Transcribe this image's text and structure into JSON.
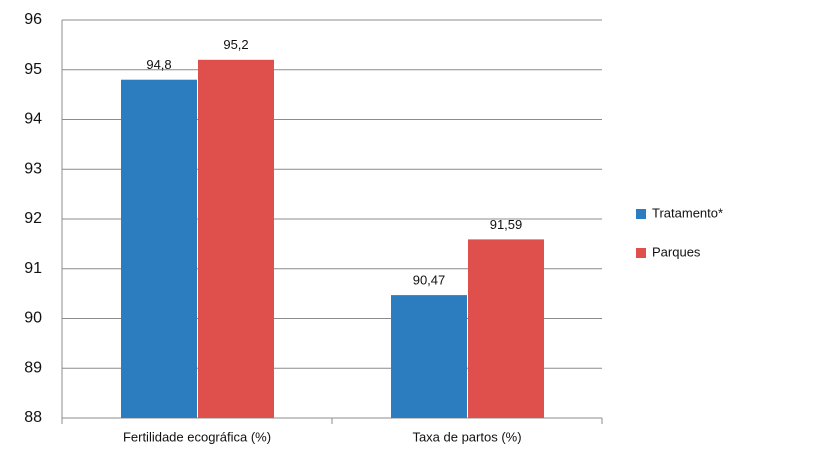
{
  "chart_data": {
    "type": "bar",
    "categories": [
      "Fertilidade ecográfica (%)",
      "Taxa de partos (%)"
    ],
    "series": [
      {
        "name": "Tratamento*",
        "color": "#2b7dc0",
        "values": [
          94.8,
          90.47
        ],
        "value_labels": [
          "94,8",
          "90,47"
        ]
      },
      {
        "name": "Parques",
        "color": "#df4f4c",
        "values": [
          95.2,
          91.59
        ],
        "value_labels": [
          "95,2",
          "91,59"
        ]
      }
    ],
    "ylim": [
      88,
      96
    ],
    "yticks": [
      88,
      89,
      90,
      91,
      92,
      93,
      94,
      95,
      96
    ],
    "grid": true,
    "legend": "right"
  }
}
